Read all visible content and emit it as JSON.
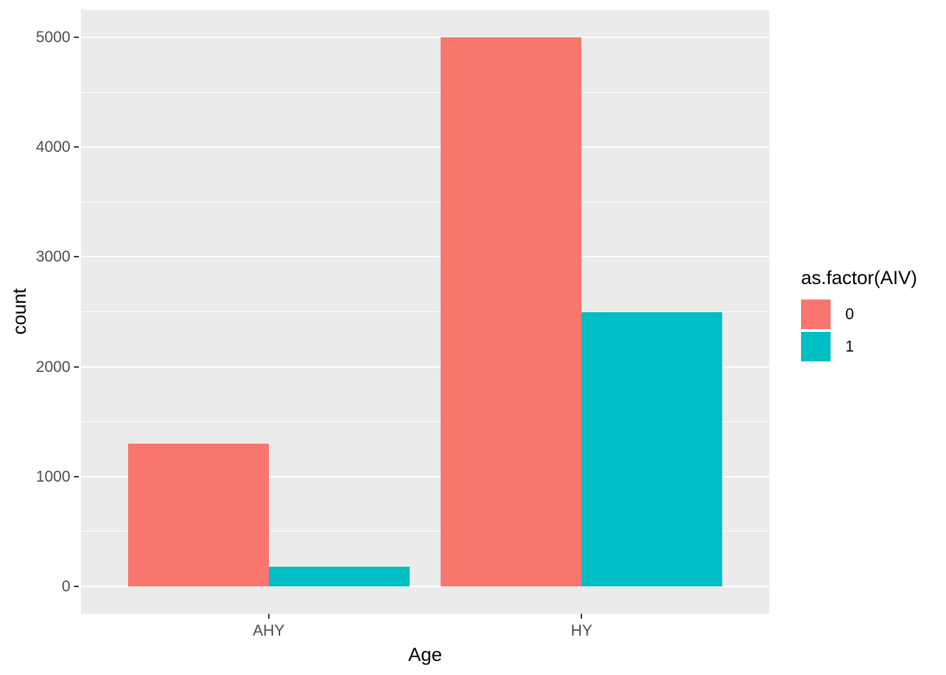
{
  "chart_data": {
    "type": "bar",
    "mode": "grouped-dodge",
    "title": "",
    "xlabel": "Age",
    "ylabel": "count",
    "categories": [
      "AHY",
      "HY"
    ],
    "series": [
      {
        "name": "0",
        "color": "#F8766D",
        "values": [
          1300,
          5000
        ]
      },
      {
        "name": "1",
        "color": "#00BFC4",
        "values": [
          180,
          2500
        ]
      }
    ],
    "ylim": [
      -250,
      5250
    ],
    "yticks": [
      0,
      1000,
      2000,
      3000,
      4000,
      5000
    ],
    "yticks_minor": [
      500,
      1500,
      2500,
      3500,
      4500
    ],
    "grid": "on",
    "legend": {
      "position": "right",
      "title": "as.factor(AIV)",
      "entries": [
        {
          "label": "0",
          "color": "#F8766D"
        },
        {
          "label": "1",
          "color": "#00BFC4"
        }
      ]
    },
    "colors": {
      "panel_background": "#EBEBEB",
      "grid_color": "#FFFFFF",
      "tick_label_color": "#4D4D4D",
      "tick_mark_color": "#333333",
      "axis_title_color": "#000000"
    }
  }
}
